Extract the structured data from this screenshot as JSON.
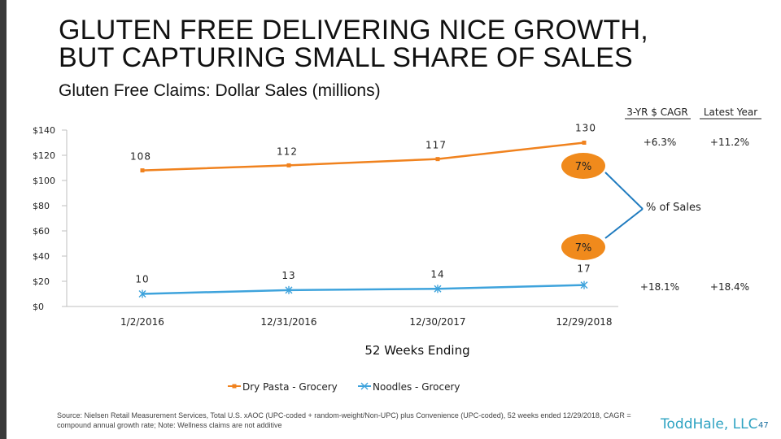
{
  "slide": {
    "title_line1": "GLUTEN FREE DELIVERING NICE GROWTH,",
    "title_line2": "BUT CAPTURING SMALL SHARE OF SALES",
    "subtitle": "Gluten Free Claims: Dollar Sales (millions)",
    "source": "Source: Nielsen Retail Measurement Services, Total U.S. xAOC (UPC-coded + random-weight/Non-UPC) plus Convenience (UPC-coded), 52 weeks ended 12/29/2018, CAGR = compound annual growth rate; Note: Wellness claims are not additive",
    "logo": "ToddHale, LLC",
    "page_number": "47"
  },
  "colors": {
    "dry_pasta": "#f0821e",
    "noodles": "#3ea3dc",
    "bubble": "#f08a1c",
    "arrow": "#1f7bbf",
    "axis": "#bfbfbf",
    "sidebar": "#3a3a3a"
  },
  "chart_data": {
    "type": "line",
    "xlabel": "52 Weeks Ending",
    "ylabel": "",
    "ylim": [
      0,
      140
    ],
    "yticks": [
      0,
      20,
      40,
      60,
      80,
      100,
      120,
      140
    ],
    "ytick_labels": [
      "$0",
      "$20",
      "$40",
      "$60",
      "$80",
      "$100",
      "$120",
      "$140"
    ],
    "categories": [
      "1/2/2016",
      "12/31/2016",
      "12/30/2017",
      "12/29/2018"
    ],
    "legend_position": "bottom",
    "series": [
      {
        "name": "Dry Pasta - Grocery",
        "values": [
          108,
          112,
          117,
          130
        ],
        "labels": [
          "108",
          "112",
          "117",
          "130"
        ],
        "marker": "square"
      },
      {
        "name": "Noodles - Grocery",
        "values": [
          10,
          13,
          14,
          17
        ],
        "labels": [
          "10",
          "13",
          "14",
          "17"
        ],
        "marker": "asterisk"
      }
    ],
    "growth_table": {
      "headers": [
        "3-YR $ CAGR",
        "Latest Year"
      ],
      "rows": [
        {
          "series": "Dry Pasta - Grocery",
          "cagr": "+6.3%",
          "latest": "+11.2%"
        },
        {
          "series": "Noodles - Grocery",
          "cagr": "+18.1%",
          "latest": "+18.4%"
        }
      ]
    },
    "annotations": {
      "share_bubbles": [
        {
          "series": "Dry Pasta - Grocery",
          "text": "7%"
        },
        {
          "series": "Noodles - Grocery",
          "text": "7%"
        }
      ],
      "share_label": "% of Sales"
    }
  }
}
